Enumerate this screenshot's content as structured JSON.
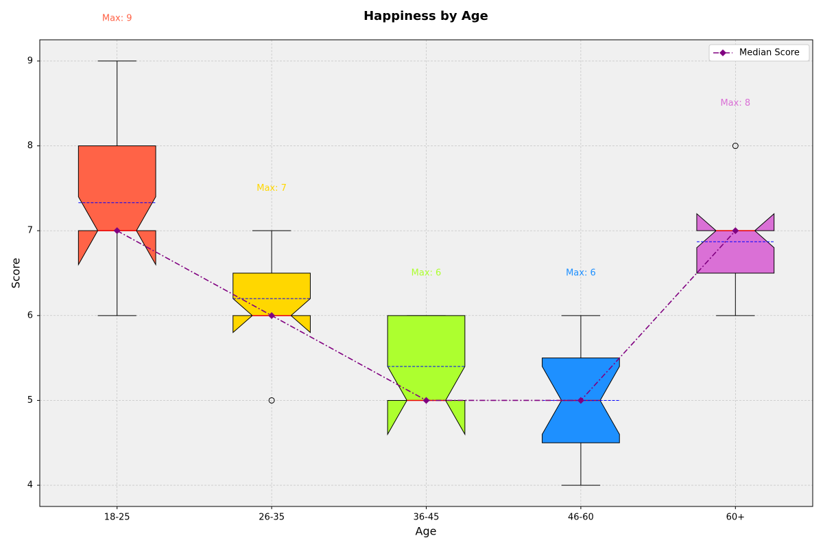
{
  "chart_data": {
    "type": "box",
    "title": "Happiness by Age",
    "x_label": "Age",
    "y_label": "Score",
    "categories": [
      "18-25",
      "26-35",
      "36-45",
      "46-60",
      "60+"
    ],
    "colors": [
      "#ff6347",
      "#ffd700",
      "#adff2f",
      "#1e90ff",
      "#da70d6"
    ],
    "boxes": [
      {
        "whislo": 6,
        "q1": 7,
        "med": 7,
        "q3": 8,
        "whishi": 9,
        "mean": 7.33,
        "notch_lo": 6.6,
        "notch_hi": 7.4,
        "fliers": []
      },
      {
        "whislo": 6,
        "q1": 6,
        "med": 6,
        "q3": 6.5,
        "whishi": 7,
        "mean": 6.2,
        "notch_lo": 5.8,
        "notch_hi": 6.2,
        "fliers": [
          5
        ]
      },
      {
        "whislo": 5,
        "q1": 5,
        "med": 5,
        "q3": 6,
        "whishi": 6,
        "mean": 5.4,
        "notch_lo": 4.6,
        "notch_hi": 5.4,
        "fliers": []
      },
      {
        "whislo": 4,
        "q1": 4.5,
        "med": 5,
        "q3": 5.5,
        "whishi": 6,
        "mean": 5.0,
        "notch_lo": 4.6,
        "notch_hi": 5.4,
        "fliers": []
      },
      {
        "whislo": 6,
        "q1": 6.5,
        "med": 7,
        "q3": 7,
        "whishi": 7,
        "mean": 6.87,
        "notch_lo": 6.8,
        "notch_hi": 7.2,
        "fliers": [
          8
        ]
      }
    ],
    "median_line": {
      "name": "Median Score",
      "color": "#800080",
      "values": [
        7,
        6,
        5,
        5,
        7
      ]
    },
    "annotations": [
      {
        "label": "Max: 9",
        "value": 9
      },
      {
        "label": "Max: 7",
        "value": 7
      },
      {
        "label": "Max: 6",
        "value": 6
      },
      {
        "label": "Max: 6",
        "value": 6
      },
      {
        "label": "Max: 8",
        "value": 8
      }
    ],
    "ylim": [
      3.75,
      9.25
    ],
    "yticks": [
      4,
      5,
      6,
      7,
      8,
      9
    ],
    "grid": true,
    "legend": "upper right"
  }
}
